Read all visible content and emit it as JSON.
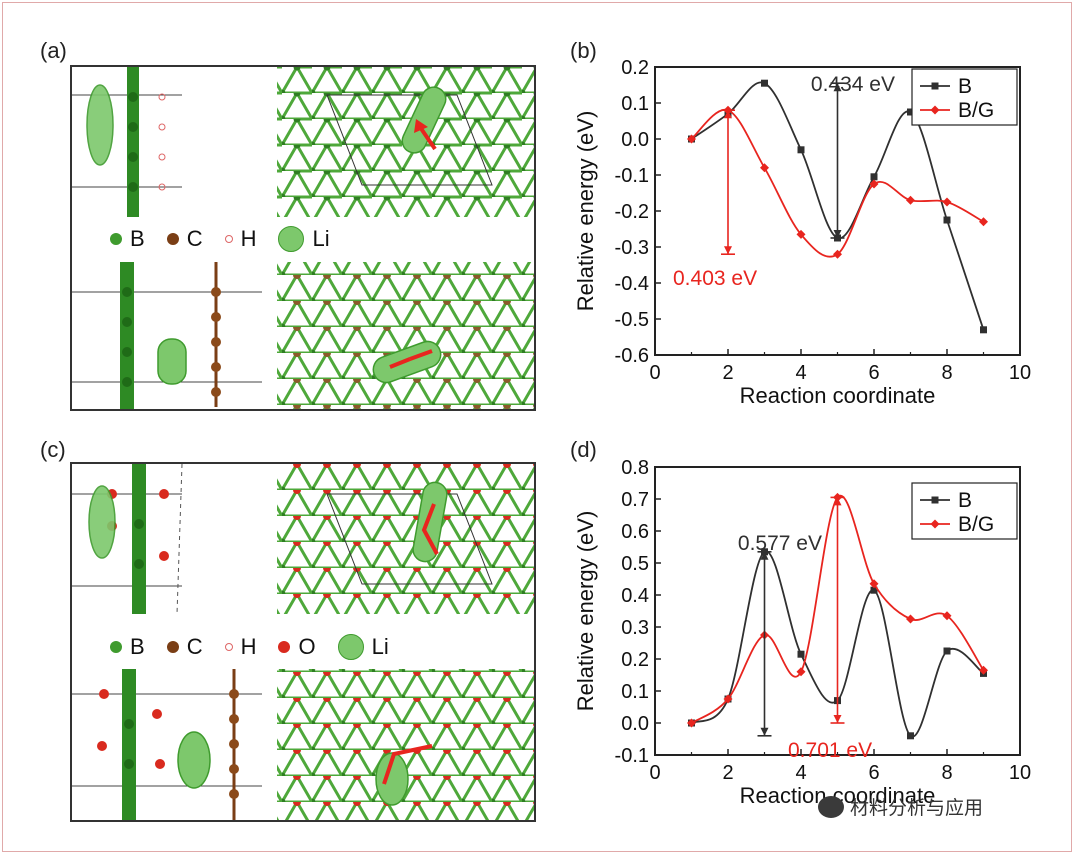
{
  "colors": {
    "b": "#303030",
    "bg": "#e8251f",
    "green": "#3f9b2e",
    "brown": "#7a3e15",
    "red_atom": "#d92a1e"
  },
  "panels": {
    "a": {
      "label": "(a)",
      "legend": [
        {
          "symbol": "B"
        },
        {
          "symbol": "C"
        },
        {
          "symbol": "H"
        },
        {
          "symbol": "Li"
        }
      ]
    },
    "c": {
      "label": "(c)",
      "legend": [
        {
          "symbol": "B"
        },
        {
          "symbol": "C"
        },
        {
          "symbol": "H"
        },
        {
          "symbol": "O"
        },
        {
          "symbol": "Li"
        }
      ]
    }
  },
  "chart_data": [
    {
      "panel_label": "(b)",
      "type": "line",
      "xlabel": "Reaction coordinate",
      "ylabel": "Relative energy (eV)",
      "xlim": [
        0,
        10
      ],
      "ylim": [
        -0.6,
        0.2
      ],
      "xticks": [
        "0",
        "2",
        "4",
        "6",
        "8",
        "10"
      ],
      "yticks": [
        "0.2",
        "0.1",
        "0.0",
        "-0.1",
        "-0.2",
        "-0.3",
        "-0.4",
        "-0.5",
        "-0.6"
      ],
      "series": [
        {
          "name": "B",
          "marker": "square",
          "x": [
            1,
            2,
            3,
            4,
            5,
            6,
            7,
            8,
            9
          ],
          "values": [
            0.0,
            0.07,
            0.155,
            -0.03,
            -0.275,
            -0.105,
            0.075,
            -0.225,
            -0.53
          ]
        },
        {
          "name": "B/G",
          "marker": "diamond",
          "x": [
            1,
            2,
            3,
            4,
            5,
            6,
            7,
            8,
            9
          ],
          "values": [
            0.0,
            0.08,
            -0.08,
            -0.265,
            -0.32,
            -0.125,
            -0.17,
            -0.175,
            -0.23
          ]
        }
      ],
      "annotations": [
        {
          "text": "0.434 eV",
          "series": "B",
          "x": 5,
          "y_from": -0.275,
          "y_to": 0.155
        },
        {
          "text": "0.403 eV",
          "series": "B/G",
          "x": 2,
          "y_from": 0.08,
          "y_to": -0.32
        }
      ]
    },
    {
      "panel_label": "(d)",
      "type": "line",
      "xlabel": "Reaction coordinate",
      "ylabel": "Relative energy (eV)",
      "xlim": [
        0,
        10
      ],
      "ylim": [
        -0.1,
        0.8
      ],
      "xticks": [
        "0",
        "2",
        "4",
        "6",
        "8",
        "10"
      ],
      "yticks": [
        "0.8",
        "0.7",
        "0.6",
        "0.5",
        "0.4",
        "0.3",
        "0.2",
        "0.1",
        "0.0",
        "-0.1"
      ],
      "series": [
        {
          "name": "B",
          "marker": "square",
          "x": [
            1,
            2,
            3,
            4,
            5,
            6,
            7,
            8,
            9
          ],
          "values": [
            0.0,
            0.075,
            0.535,
            0.215,
            0.07,
            0.415,
            -0.04,
            0.225,
            0.155
          ]
        },
        {
          "name": "B/G",
          "marker": "diamond",
          "x": [
            1,
            2,
            3,
            4,
            5,
            6,
            7,
            8,
            9
          ],
          "values": [
            0.0,
            0.075,
            0.275,
            0.16,
            0.705,
            0.435,
            0.325,
            0.335,
            0.165
          ]
        }
      ],
      "annotations": [
        {
          "text": "0.577 eV",
          "series": "B",
          "x": 3,
          "y_from": -0.04,
          "y_to": 0.535
        },
        {
          "text": "0.701 eV",
          "series": "B/G",
          "x": 5,
          "y_from": 0.0,
          "y_to": 0.705
        }
      ]
    }
  ],
  "watermark": {
    "text": "材料分析与应用"
  }
}
